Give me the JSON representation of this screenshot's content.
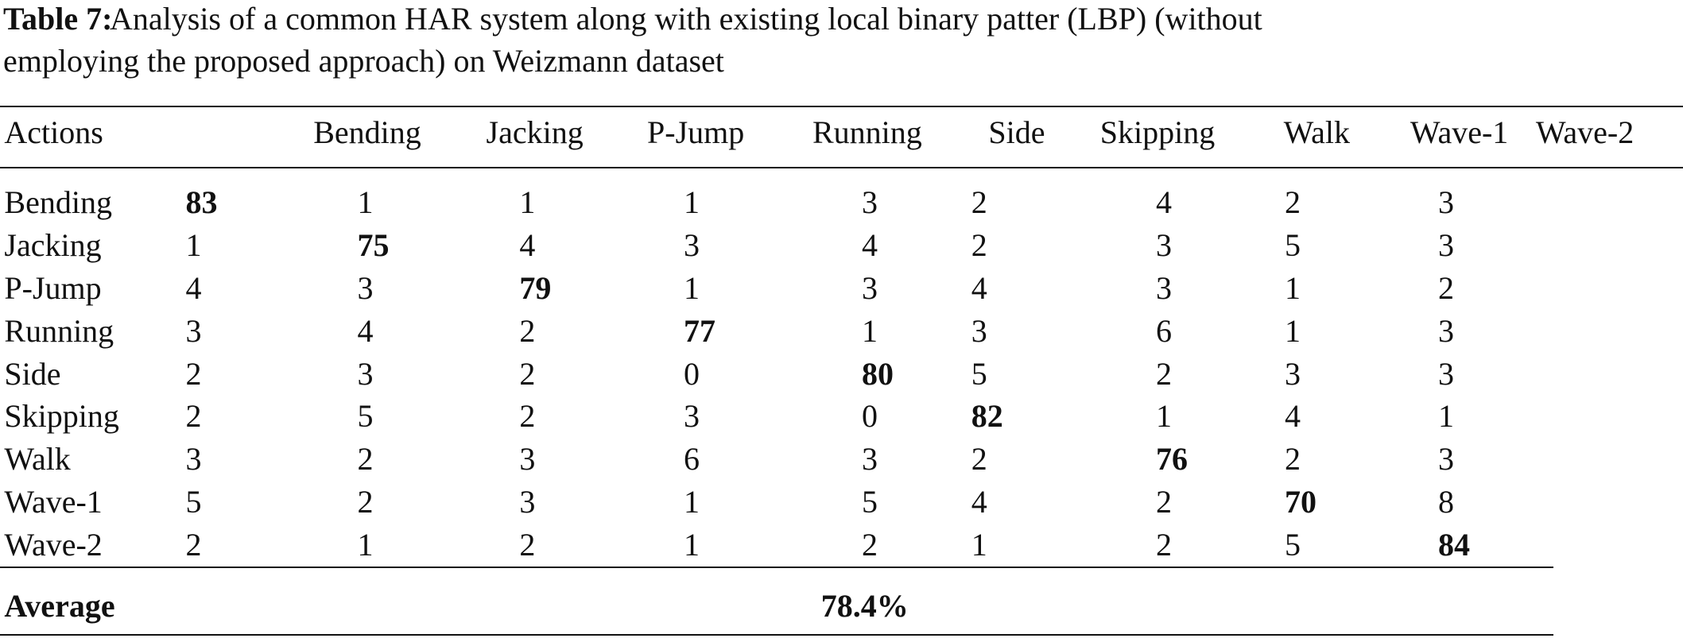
{
  "caption": {
    "label": "Table 7:",
    "lines": [
      "Analysis of a common HAR system along with existing local binary patter (LBP) (without",
      "employing the proposed approach) on Weizmann dataset"
    ]
  },
  "table": {
    "header": [
      "Actions",
      "Bending",
      "Jacking",
      "P-Jump",
      "Running",
      "Side",
      "Skipping",
      "Walk",
      "Wave-1",
      "Wave-2"
    ],
    "rows": [
      [
        "Bending",
        83,
        1,
        1,
        1,
        3,
        2,
        4,
        2,
        3
      ],
      [
        "Jacking",
        1,
        75,
        4,
        3,
        4,
        2,
        3,
        5,
        3
      ],
      [
        "P-Jump",
        4,
        3,
        79,
        1,
        3,
        4,
        3,
        1,
        2
      ],
      [
        "Running",
        3,
        4,
        2,
        77,
        1,
        3,
        6,
        1,
        3
      ],
      [
        "Side",
        2,
        3,
        2,
        0,
        80,
        5,
        2,
        3,
        3
      ],
      [
        "Skipping",
        2,
        5,
        2,
        3,
        0,
        82,
        1,
        4,
        1
      ],
      [
        "Walk",
        3,
        2,
        3,
        6,
        3,
        2,
        76,
        2,
        3
      ],
      [
        "Wave-1",
        5,
        2,
        3,
        1,
        5,
        4,
        2,
        70,
        8
      ],
      [
        "Wave-2",
        2,
        1,
        2,
        1,
        2,
        1,
        2,
        5,
        84
      ]
    ],
    "footer": [
      "Average",
      "78.4%"
    ]
  }
}
